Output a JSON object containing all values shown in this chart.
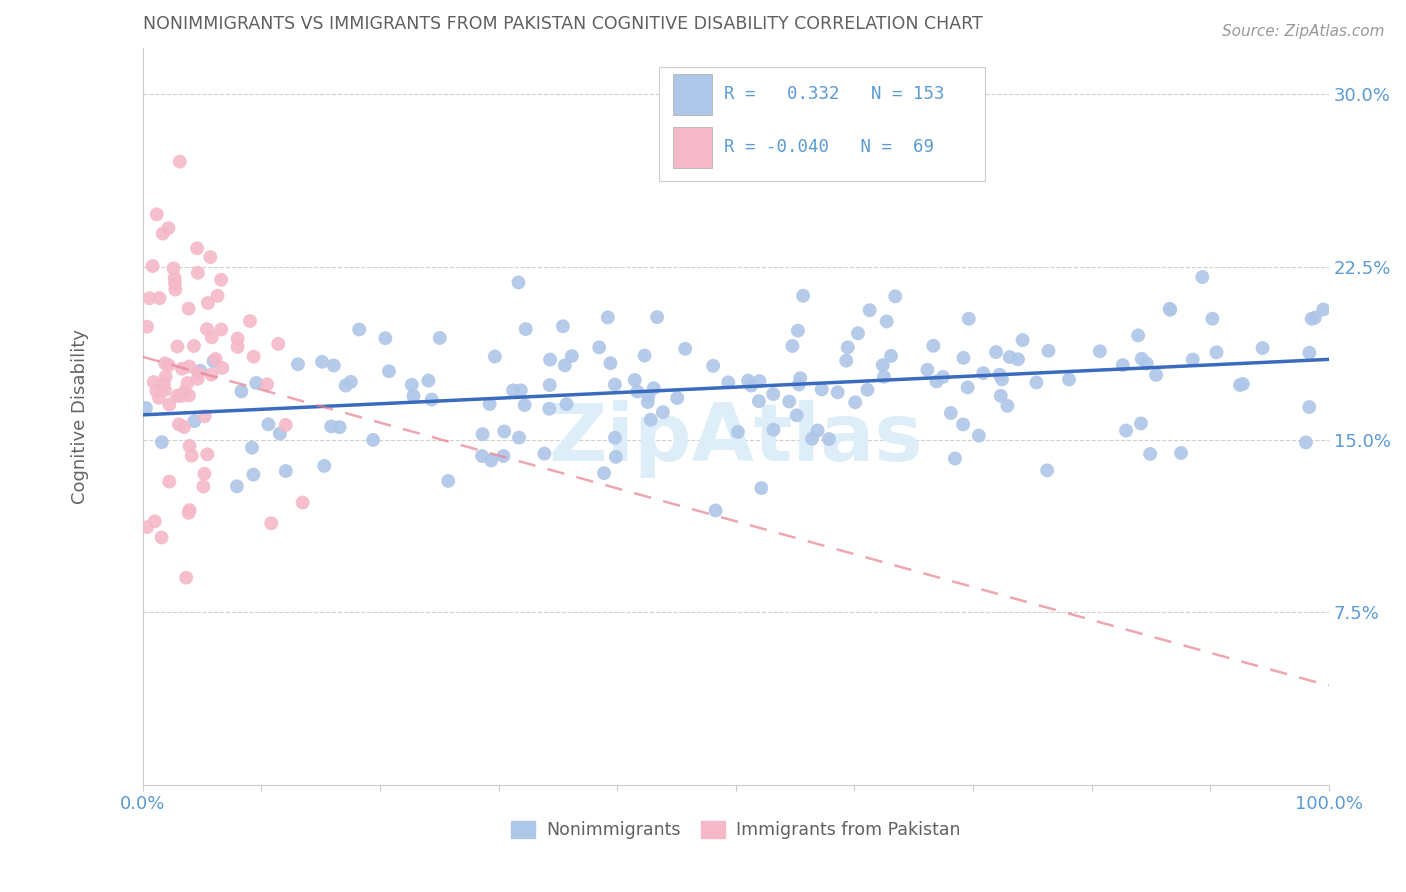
{
  "title": "NONIMMIGRANTS VS IMMIGRANTS FROM PAKISTAN COGNITIVE DISABILITY CORRELATION CHART",
  "source": "Source: ZipAtlas.com",
  "ylabel": "Cognitive Disability",
  "xlim": [
    0,
    1.0
  ],
  "ylim": [
    0,
    0.32
  ],
  "yticks": [
    0.075,
    0.15,
    0.225,
    0.3
  ],
  "ytick_labels": [
    "7.5%",
    "15.0%",
    "22.5%",
    "30.0%"
  ],
  "xtick_labels": [
    "0.0%",
    "",
    "",
    "",
    "",
    "",
    "",
    "",
    "",
    "",
    "100.0%"
  ],
  "legend_labels": [
    "Nonimmigrants",
    "Immigrants from Pakistan"
  ],
  "blue_R": 0.332,
  "blue_N": 153,
  "pink_R": -0.04,
  "pink_N": 69,
  "blue_dot_color": "#aec6e8",
  "pink_dot_color": "#f5b8c8",
  "blue_line_color": "#3a6bbf",
  "pink_line_color": "#e88090",
  "axis_tick_color": "#5b9bd5",
  "title_color": "#606060",
  "source_color": "#999999",
  "watermark_text": "ZipAtlas",
  "watermark_color": "#ddeef8",
  "grid_color": "#d0d0d0",
  "legend_border_color": "#cccccc",
  "bottom_legend_label_color": "#606060"
}
